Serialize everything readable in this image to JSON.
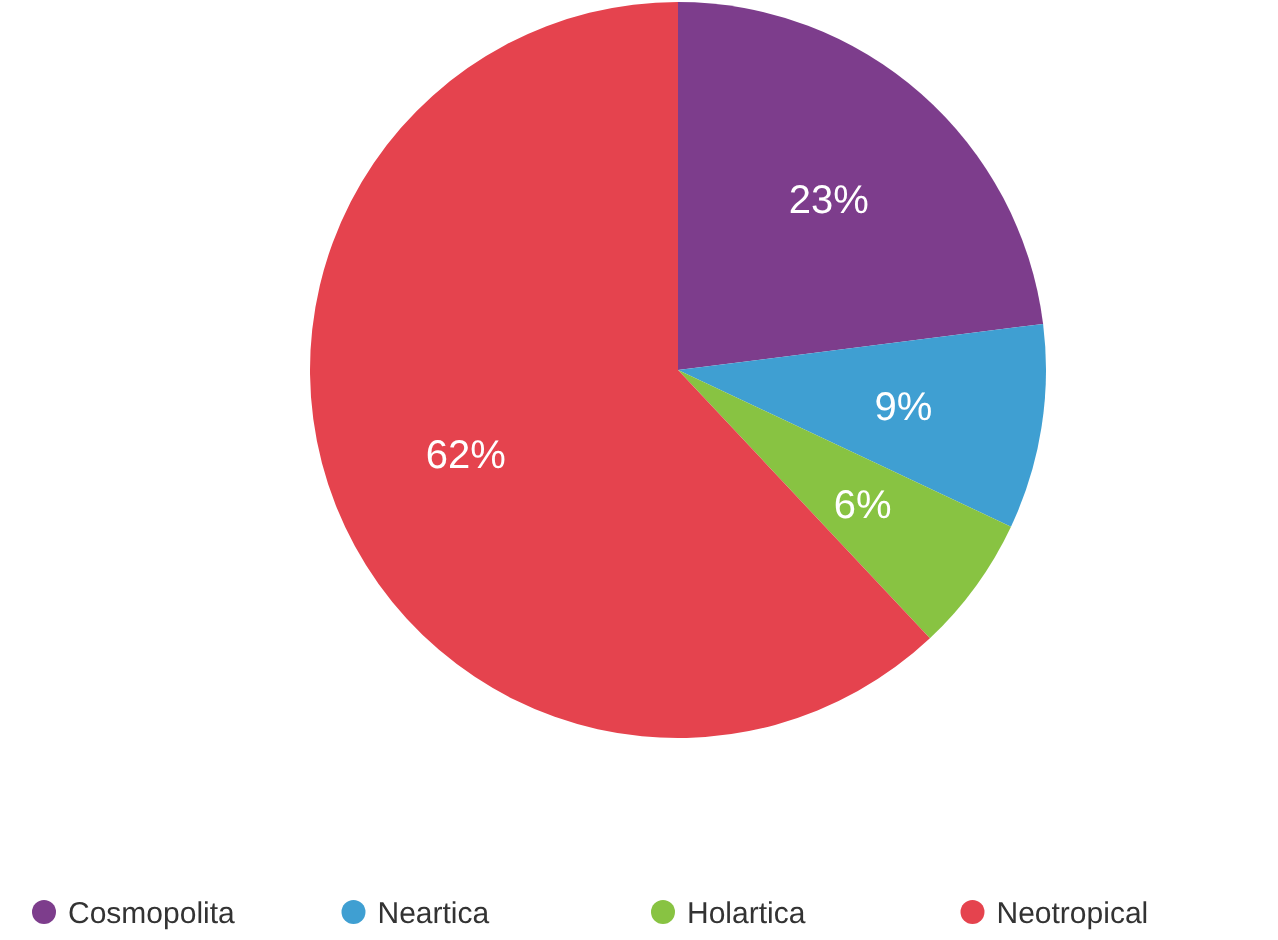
{
  "chart_data": {
    "type": "pie",
    "categories": [
      "Cosmopolita",
      "Neartica",
      "Holartica",
      "Neotropical"
    ],
    "values": [
      23,
      9,
      6,
      62
    ],
    "colors": [
      "#7d3d8c",
      "#3f9fd2",
      "#88c342",
      "#e5434e"
    ],
    "value_labels": [
      "23%",
      "9%",
      "6%",
      "62%"
    ],
    "legend": "bottom"
  }
}
